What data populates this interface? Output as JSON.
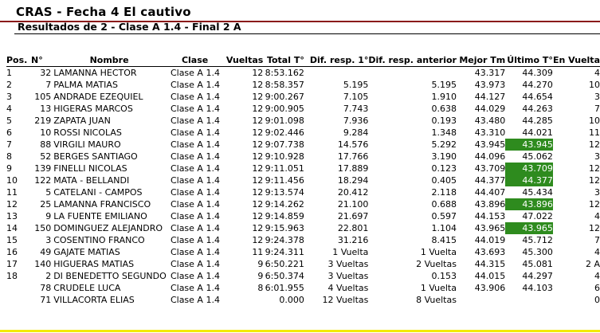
{
  "header": {
    "title": "CRAS - Fecha 4 El cautivo",
    "subtitle": "Resultados de 2 - Clase A 1.4 - Final 2 A"
  },
  "colors": {
    "best_lap_bg": "#2e8b1e",
    "title_rule": "#8b1a1a",
    "footer_rule": "#f2ea00"
  },
  "table": {
    "columns": [
      "Pos.",
      "N°",
      "Nombre",
      "Clase",
      "Vueltas",
      "Total T°",
      "Dif. resp. 1°",
      "Dif. resp. anterior",
      "Mejor Tm",
      "Último T°",
      "En Vuelta"
    ],
    "rows": [
      {
        "pos": "1",
        "num": "32",
        "name": "LAMANNA HECTOR",
        "clase": "Clase A 1.4",
        "laps": "12",
        "total": "8:53.162",
        "dif1": "",
        "difprev": "",
        "best": "43.317",
        "last": "44.309",
        "onlap": "4",
        "last_best": false
      },
      {
        "pos": "2",
        "num": "7",
        "name": "PALMA MATIAS",
        "clase": "Clase A 1.4",
        "laps": "12",
        "total": "8:58.357",
        "dif1": "5.195",
        "difprev": "5.195",
        "best": "43.973",
        "last": "44.270",
        "onlap": "10",
        "last_best": false
      },
      {
        "pos": "3",
        "num": "105",
        "name": "ANDRADE EZEQUIEL",
        "clase": "Clase A 1.4",
        "laps": "12",
        "total": "9:00.267",
        "dif1": "7.105",
        "difprev": "1.910",
        "best": "44.127",
        "last": "44.654",
        "onlap": "3",
        "last_best": false
      },
      {
        "pos": "4",
        "num": "13",
        "name": "HIGERAS MARCOS",
        "clase": "Clase A 1.4",
        "laps": "12",
        "total": "9:00.905",
        "dif1": "7.743",
        "difprev": "0.638",
        "best": "44.029",
        "last": "44.263",
        "onlap": "7",
        "last_best": false
      },
      {
        "pos": "5",
        "num": "219",
        "name": "ZAPATA JUAN",
        "clase": "Clase A 1.4",
        "laps": "12",
        "total": "9:01.098",
        "dif1": "7.936",
        "difprev": "0.193",
        "best": "43.480",
        "last": "44.285",
        "onlap": "10",
        "last_best": false
      },
      {
        "pos": "6",
        "num": "10",
        "name": "ROSSI NICOLAS",
        "clase": "Clase A 1.4",
        "laps": "12",
        "total": "9:02.446",
        "dif1": "9.284",
        "difprev": "1.348",
        "best": "43.310",
        "last": "44.021",
        "onlap": "11",
        "last_best": false
      },
      {
        "pos": "7",
        "num": "88",
        "name": "VIRGILI MAURO",
        "clase": "Clase A 1.4",
        "laps": "12",
        "total": "9:07.738",
        "dif1": "14.576",
        "difprev": "5.292",
        "best": "43.945",
        "last": "43.945",
        "onlap": "12",
        "last_best": true
      },
      {
        "pos": "8",
        "num": "52",
        "name": "BERGES SANTIAGO",
        "clase": "Clase A 1.4",
        "laps": "12",
        "total": "9:10.928",
        "dif1": "17.766",
        "difprev": "3.190",
        "best": "44.096",
        "last": "45.062",
        "onlap": "3",
        "last_best": false
      },
      {
        "pos": "9",
        "num": "139",
        "name": "FINELLI NICOLAS",
        "clase": "Clase A 1.4",
        "laps": "12",
        "total": "9:11.051",
        "dif1": "17.889",
        "difprev": "0.123",
        "best": "43.709",
        "last": "43.709",
        "onlap": "12",
        "last_best": true
      },
      {
        "pos": "10",
        "num": "122",
        "name": "MATA - BELLANDI",
        "clase": "Clase A 1.4",
        "laps": "12",
        "total": "9:11.456",
        "dif1": "18.294",
        "difprev": "0.405",
        "best": "44.377",
        "last": "44.377",
        "onlap": "12",
        "last_best": true
      },
      {
        "pos": "11",
        "num": "5",
        "name": "CATELANI - CAMPOS",
        "clase": "Clase A 1.4",
        "laps": "12",
        "total": "9:13.574",
        "dif1": "20.412",
        "difprev": "2.118",
        "best": "44.407",
        "last": "45.434",
        "onlap": "3",
        "last_best": false
      },
      {
        "pos": "12",
        "num": "25",
        "name": "LAMANNA FRANCISCO",
        "clase": "Clase A 1.4",
        "laps": "12",
        "total": "9:14.262",
        "dif1": "21.100",
        "difprev": "0.688",
        "best": "43.896",
        "last": "43.896",
        "onlap": "12",
        "last_best": true
      },
      {
        "pos": "13",
        "num": "9",
        "name": "LA FUENTE EMILIANO",
        "clase": "Clase A 1.4",
        "laps": "12",
        "total": "9:14.859",
        "dif1": "21.697",
        "difprev": "0.597",
        "best": "44.153",
        "last": "47.022",
        "onlap": "4",
        "last_best": false
      },
      {
        "pos": "14",
        "num": "150",
        "name": "DOMINGUEZ ALEJANDRO",
        "clase": "Clase A 1.4",
        "laps": "12",
        "total": "9:15.963",
        "dif1": "22.801",
        "difprev": "1.104",
        "best": "43.965",
        "last": "43.965",
        "onlap": "12",
        "last_best": true
      },
      {
        "pos": "15",
        "num": "3",
        "name": "COSENTINO FRANCO",
        "clase": "Clase A 1.4",
        "laps": "12",
        "total": "9:24.378",
        "dif1": "31.216",
        "difprev": "8.415",
        "best": "44.019",
        "last": "45.712",
        "onlap": "7",
        "last_best": false
      },
      {
        "pos": "16",
        "num": "49",
        "name": "GAJATE MATIAS",
        "clase": "Clase A 1.4",
        "laps": "11",
        "total": "9:24.311",
        "dif1": "1 Vuelta",
        "difprev": "1 Vuelta",
        "best": "43.693",
        "last": "45.300",
        "onlap": "4",
        "last_best": false
      },
      {
        "pos": "17",
        "num": "140",
        "name": "HIGUERAS MATIAS",
        "clase": "Clase A 1.4",
        "laps": "9",
        "total": "6:50.221",
        "dif1": "3 Vueltas",
        "difprev": "2 Vueltas",
        "best": "44.315",
        "last": "45.081",
        "onlap": "2 A",
        "last_best": false
      },
      {
        "pos": "18",
        "num": "2",
        "name": "DI BENEDETTO SEGUNDO",
        "clase": "Clase A 1.4",
        "laps": "9",
        "total": "6:50.374",
        "dif1": "3 Vueltas",
        "difprev": "0.153",
        "best": "44.015",
        "last": "44.297",
        "onlap": "4",
        "last_best": false
      },
      {
        "pos": "",
        "num": "78",
        "name": "CRUDELE LUCA",
        "clase": "Clase A 1.4",
        "laps": "8",
        "total": "6:01.955",
        "dif1": "4 Vueltas",
        "difprev": "1 Vuelta",
        "best": "43.906",
        "last": "44.103",
        "onlap": "6",
        "last_best": false
      },
      {
        "pos": "",
        "num": "71",
        "name": "VILLACORTA ELIAS",
        "clase": "Clase A 1.4",
        "laps": "",
        "total": "0.000",
        "dif1": "12 Vueltas",
        "difprev": "8 Vueltas",
        "best": "",
        "last": "",
        "onlap": "0",
        "last_best": false
      }
    ]
  }
}
